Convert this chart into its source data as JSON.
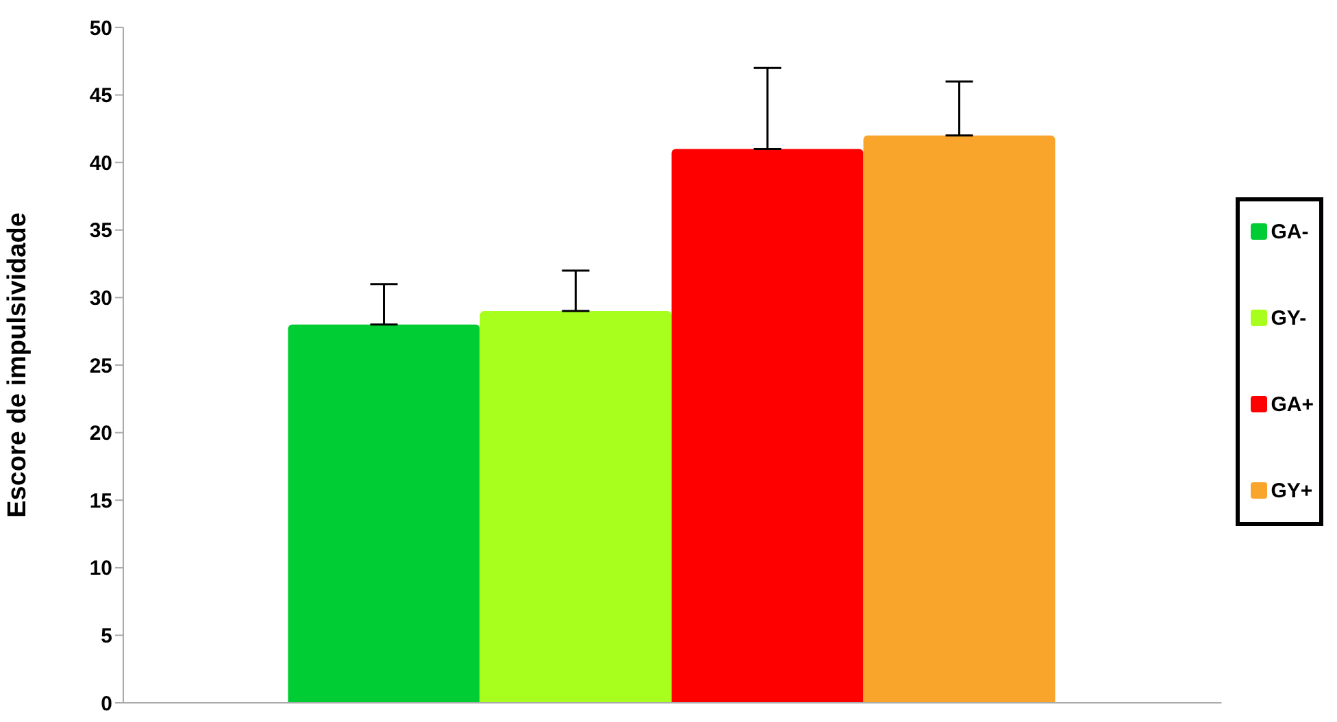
{
  "chart_data": {
    "type": "bar",
    "ylabel": "Escore de impulsividade",
    "categories": [
      null
    ],
    "series": [
      {
        "name": "GA-",
        "color": "#00cc33",
        "values": [
          28
        ],
        "errors": [
          [
            28,
            31
          ]
        ]
      },
      {
        "name": "GY-",
        "color": "#a8ff1e",
        "values": [
          29
        ],
        "errors": [
          [
            29,
            32
          ]
        ]
      },
      {
        "name": "GA+",
        "color": "#ff0000",
        "values": [
          41
        ],
        "errors": [
          [
            41,
            47
          ]
        ]
      },
      {
        "name": "GY+",
        "color": "#f9a42b",
        "values": [
          42
        ],
        "errors": [
          [
            42,
            46
          ]
        ]
      }
    ],
    "ylim": [
      0,
      50
    ],
    "yticks": [
      0,
      5,
      10,
      15,
      20,
      25,
      30,
      35,
      40,
      45,
      50
    ],
    "grid": false,
    "legend": "right"
  }
}
